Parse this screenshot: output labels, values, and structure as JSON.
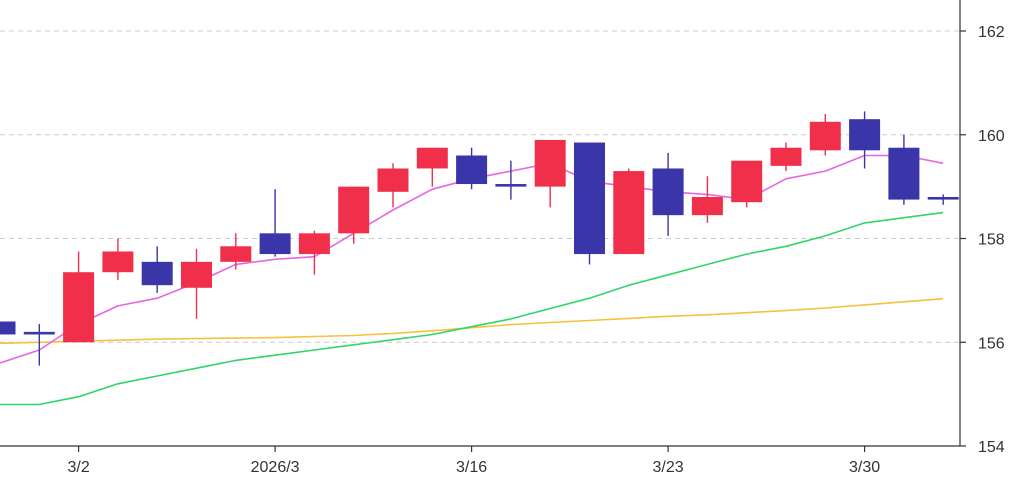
{
  "chart_data": {
    "type": "candlestick",
    "ylim": [
      154,
      162
    ],
    "y_ticks": [
      "162",
      "160",
      "158",
      "156",
      "154"
    ],
    "x_ticks": [
      {
        "label": "3/2",
        "index": 2
      },
      {
        "label": "2026/3",
        "index": 7
      },
      {
        "label": "3/16",
        "index": 12
      },
      {
        "label": "3/23",
        "index": 17
      },
      {
        "label": "3/30",
        "index": 22
      }
    ],
    "grid": true,
    "colors": {
      "up": "#f0304a",
      "down": "#3a35a8",
      "ma_short": "#e866e0",
      "ma_mid": "#2ed66a",
      "ma_long": "#f5c23d",
      "grid": "#cccccc",
      "axis": "#333333"
    },
    "candles": [
      {
        "open": 156.4,
        "close": 156.15,
        "high": 156.4,
        "low": 156.15
      },
      {
        "open": 156.2,
        "close": 156.15,
        "high": 156.35,
        "low": 155.55
      },
      {
        "open": 156.0,
        "close": 157.35,
        "high": 157.75,
        "low": 156.0
      },
      {
        "open": 157.35,
        "close": 157.75,
        "high": 158.0,
        "low": 157.2
      },
      {
        "open": 157.55,
        "close": 157.1,
        "high": 157.85,
        "low": 156.95
      },
      {
        "open": 157.05,
        "close": 157.55,
        "high": 157.8,
        "low": 156.45
      },
      {
        "open": 157.55,
        "close": 157.85,
        "high": 158.1,
        "low": 157.4
      },
      {
        "open": 158.1,
        "close": 157.7,
        "high": 158.95,
        "low": 157.65
      },
      {
        "open": 157.7,
        "close": 158.1,
        "high": 158.15,
        "low": 157.3
      },
      {
        "open": 158.1,
        "close": 159.0,
        "high": 159.0,
        "low": 157.9
      },
      {
        "open": 158.9,
        "close": 159.35,
        "high": 159.45,
        "low": 158.6
      },
      {
        "open": 159.35,
        "close": 159.75,
        "high": 159.75,
        "low": 159.0
      },
      {
        "open": 159.6,
        "close": 159.05,
        "high": 159.75,
        "low": 158.95
      },
      {
        "open": 159.05,
        "close": 159.0,
        "high": 159.5,
        "low": 158.75
      },
      {
        "open": 159.0,
        "close": 159.9,
        "high": 159.9,
        "low": 158.6
      },
      {
        "open": 159.85,
        "close": 157.7,
        "high": 159.85,
        "low": 157.5
      },
      {
        "open": 157.7,
        "close": 159.3,
        "high": 159.35,
        "low": 157.7
      },
      {
        "open": 159.35,
        "close": 158.45,
        "high": 159.65,
        "low": 158.05
      },
      {
        "open": 158.45,
        "close": 158.8,
        "high": 159.2,
        "low": 158.3
      },
      {
        "open": 158.7,
        "close": 159.5,
        "high": 159.5,
        "low": 158.6
      },
      {
        "open": 159.4,
        "close": 159.75,
        "high": 159.85,
        "low": 159.3
      },
      {
        "open": 159.7,
        "close": 160.25,
        "high": 160.4,
        "low": 159.6
      },
      {
        "open": 160.3,
        "close": 159.7,
        "high": 160.45,
        "low": 159.35
      },
      {
        "open": 159.75,
        "close": 158.75,
        "high": 160.0,
        "low": 158.65
      },
      {
        "open": 158.8,
        "close": 158.75,
        "high": 158.85,
        "low": 158.65
      }
    ],
    "series": [
      {
        "key": "ma_short",
        "values": [
          155.6,
          155.85,
          156.35,
          156.7,
          156.85,
          157.15,
          157.5,
          157.6,
          157.65,
          158.1,
          158.55,
          158.95,
          159.15,
          159.3,
          159.45,
          159.1,
          159.0,
          158.9,
          158.85,
          158.75,
          159.15,
          159.3,
          159.6,
          159.6,
          159.45
        ]
      },
      {
        "key": "ma_mid",
        "values": [
          154.8,
          154.8,
          154.95,
          155.2,
          155.35,
          155.5,
          155.65,
          155.75,
          155.85,
          155.95,
          156.05,
          156.15,
          156.3,
          156.45,
          156.65,
          156.85,
          157.1,
          157.3,
          157.5,
          157.7,
          157.85,
          158.05,
          158.3,
          158.4,
          158.5
        ]
      },
      {
        "key": "ma_long",
        "values": [
          155.98,
          156.0,
          156.02,
          156.04,
          156.06,
          156.07,
          156.08,
          156.09,
          156.11,
          156.13,
          156.17,
          156.22,
          156.28,
          156.34,
          156.38,
          156.42,
          156.46,
          156.5,
          156.53,
          156.57,
          156.61,
          156.66,
          156.72,
          156.78,
          156.84
        ]
      }
    ]
  }
}
